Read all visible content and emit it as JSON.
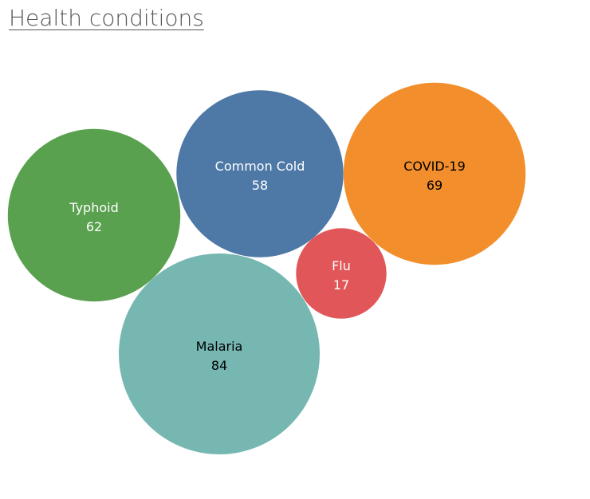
{
  "title": "Health conditions",
  "chart_data": {
    "type": "bubble",
    "title": "Health conditions",
    "items": [
      {
        "label": "Typhoid",
        "value": 62,
        "color": "#59a14f",
        "text_color": "#ffffff"
      },
      {
        "label": "Common Cold",
        "value": 58,
        "color": "#4e79a7",
        "text_color": "#ffffff"
      },
      {
        "label": "COVID-19",
        "value": 69,
        "color": "#f28e2b",
        "text_color": "#000000"
      },
      {
        "label": "Flu",
        "value": 17,
        "color": "#e15759",
        "text_color": "#ffffff"
      },
      {
        "label": "Malaria",
        "value": 84,
        "color": "#76b7b2",
        "text_color": "#000000"
      }
    ]
  }
}
